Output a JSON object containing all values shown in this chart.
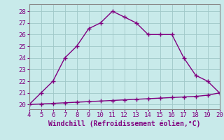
{
  "x_upper": [
    4,
    5,
    6,
    7,
    8,
    9,
    10,
    11,
    12,
    13,
    14,
    15,
    16,
    17,
    18,
    19,
    20
  ],
  "y_upper": [
    20.0,
    21.0,
    22.0,
    24.0,
    25.0,
    26.5,
    27.0,
    28.0,
    27.5,
    27.0,
    26.0,
    26.0,
    26.0,
    24.0,
    22.5,
    22.0,
    21.0
  ],
  "x_lower": [
    4,
    5,
    6,
    7,
    8,
    9,
    10,
    11,
    12,
    13,
    14,
    15,
    16,
    17,
    18,
    19,
    20
  ],
  "y_lower": [
    20.0,
    20.05,
    20.1,
    20.15,
    20.2,
    20.25,
    20.3,
    20.35,
    20.4,
    20.45,
    20.5,
    20.55,
    20.6,
    20.65,
    20.7,
    20.8,
    21.0
  ],
  "line_color": "#800080",
  "marker": "+",
  "markersize": 4,
  "markeredgewidth": 1.0,
  "linewidth": 1.0,
  "xlabel": "Windchill (Refroidissement éolien,°C)",
  "xlim": [
    4,
    20
  ],
  "ylim": [
    19.6,
    28.6
  ],
  "yticks": [
    20,
    21,
    22,
    23,
    24,
    25,
    26,
    27,
    28
  ],
  "xticks": [
    4,
    5,
    6,
    7,
    8,
    9,
    10,
    11,
    12,
    13,
    14,
    15,
    16,
    17,
    18,
    19,
    20
  ],
  "bg_color": "#c8eaea",
  "grid_color": "#a0c8c8",
  "xlabel_color": "#800080",
  "tick_color": "#800080",
  "xlabel_fontsize": 7,
  "tick_fontsize": 6.5
}
